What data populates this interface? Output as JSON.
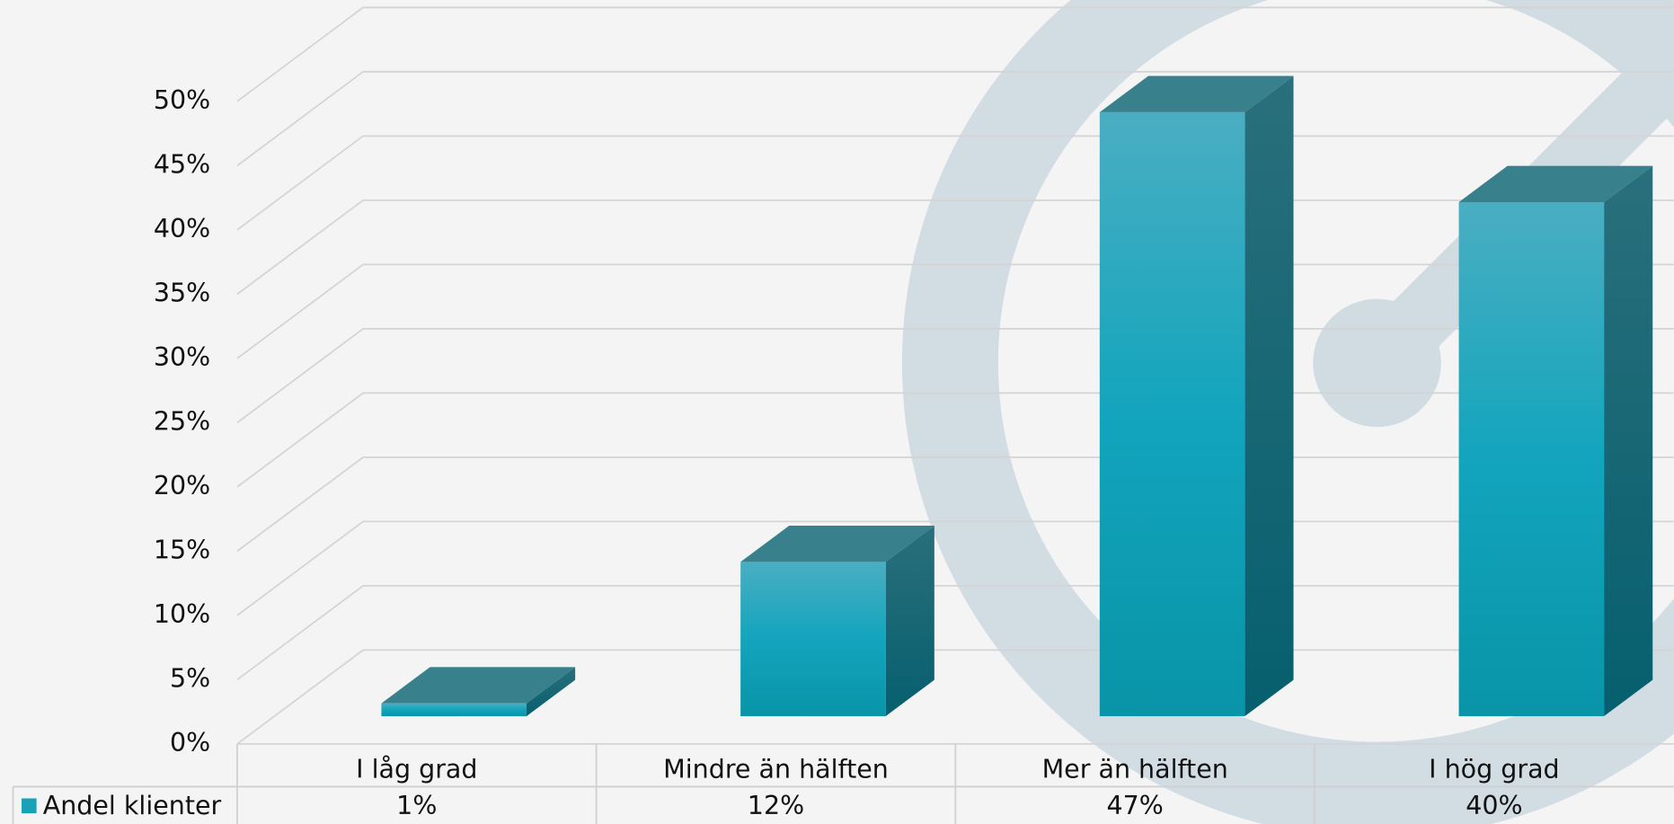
{
  "chart_data": {
    "type": "bar3d",
    "categories": [
      "I låg grad",
      "Mindre än hälften",
      "Mer än hälften",
      "I hög grad"
    ],
    "series": [
      {
        "name": "Andel klienter",
        "color": "#17a2b8",
        "values": [
          1,
          12,
          47,
          40
        ],
        "value_labels": [
          "1%",
          "12%",
          "47%",
          "40%"
        ]
      }
    ],
    "ylim": [
      0,
      50
    ],
    "yticks": [
      {
        "value": 0,
        "label": "0%"
      },
      {
        "value": 5,
        "label": "5%"
      },
      {
        "value": 10,
        "label": "10%"
      },
      {
        "value": 15,
        "label": "15%"
      },
      {
        "value": 20,
        "label": "20%"
      },
      {
        "value": 25,
        "label": "25%"
      },
      {
        "value": 30,
        "label": "30%"
      },
      {
        "value": 35,
        "label": "35%"
      },
      {
        "value": 40,
        "label": "40%"
      },
      {
        "value": 45,
        "label": "45%"
      },
      {
        "value": 50,
        "label": "50%"
      }
    ],
    "grid": true,
    "legend": "bottom-left"
  }
}
